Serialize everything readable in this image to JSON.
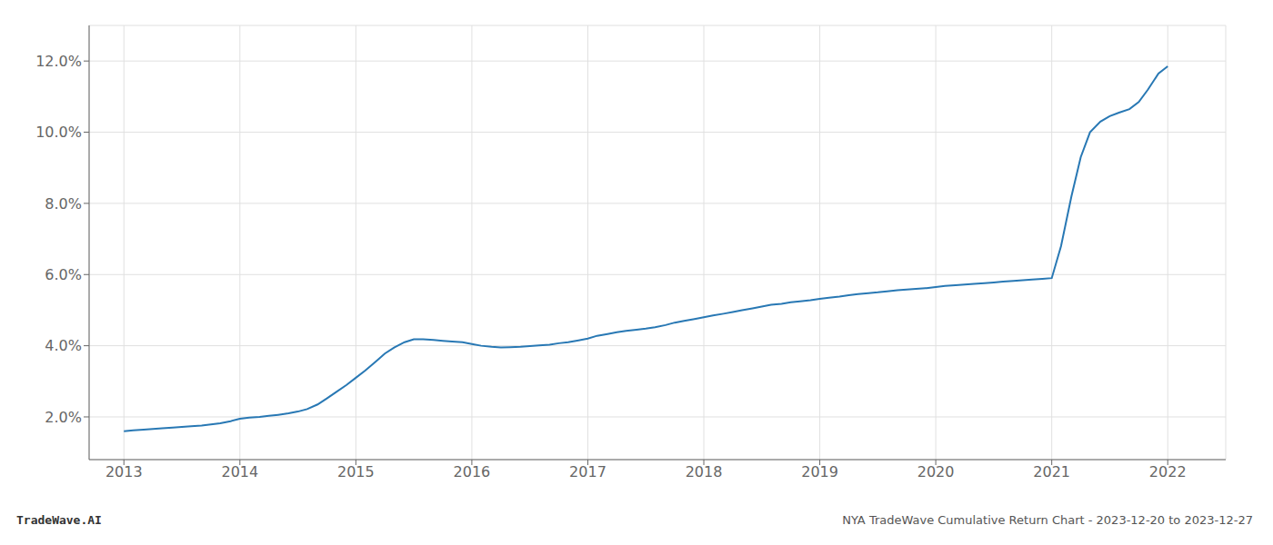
{
  "chart_data": {
    "type": "line",
    "color": "#2878b4",
    "grid": true,
    "annotations": [
      "TradeWave.AI",
      "NYA TradeWave Cumulative Return Chart - 2023-12-20 to 2023-12-27"
    ],
    "x": [
      2013,
      2013.08,
      2013.17,
      2013.25,
      2013.33,
      2013.42,
      2013.5,
      2013.58,
      2013.67,
      2013.75,
      2013.83,
      2013.92,
      2014.0,
      2014.08,
      2014.17,
      2014.25,
      2014.33,
      2014.42,
      2014.5,
      2014.58,
      2014.67,
      2014.75,
      2014.83,
      2014.92,
      2015.0,
      2015.08,
      2015.17,
      2015.25,
      2015.33,
      2015.42,
      2015.5,
      2015.58,
      2015.67,
      2015.75,
      2015.83,
      2015.92,
      2016.0,
      2016.08,
      2016.17,
      2016.25,
      2016.33,
      2016.42,
      2016.5,
      2016.58,
      2016.67,
      2016.75,
      2016.83,
      2016.92,
      2017.0,
      2017.08,
      2017.17,
      2017.25,
      2017.33,
      2017.42,
      2017.5,
      2017.58,
      2017.67,
      2017.75,
      2017.83,
      2017.92,
      2018.0,
      2018.08,
      2018.17,
      2018.25,
      2018.33,
      2018.42,
      2018.5,
      2018.58,
      2018.67,
      2018.75,
      2018.83,
      2018.92,
      2019.0,
      2019.08,
      2019.17,
      2019.25,
      2019.33,
      2019.42,
      2019.5,
      2019.58,
      2019.67,
      2019.75,
      2019.83,
      2019.92,
      2020.0,
      2020.08,
      2020.17,
      2020.25,
      2020.33,
      2020.42,
      2020.5,
      2020.58,
      2020.67,
      2020.75,
      2020.83,
      2020.92,
      2021.0,
      2021.08,
      2021.17,
      2021.25,
      2021.33,
      2021.42,
      2021.5,
      2021.58,
      2021.67,
      2021.75,
      2021.83,
      2021.92,
      2022.0
    ],
    "values": [
      1.6,
      1.62,
      1.64,
      1.66,
      1.68,
      1.7,
      1.72,
      1.74,
      1.76,
      1.79,
      1.82,
      1.88,
      1.95,
      1.98,
      2.0,
      2.03,
      2.06,
      2.1,
      2.15,
      2.22,
      2.35,
      2.52,
      2.7,
      2.9,
      3.1,
      3.3,
      3.55,
      3.78,
      3.95,
      4.1,
      4.18,
      4.18,
      4.16,
      4.14,
      4.12,
      4.1,
      4.05,
      4.0,
      3.97,
      3.95,
      3.96,
      3.97,
      3.99,
      4.01,
      4.03,
      4.07,
      4.1,
      4.15,
      4.2,
      4.28,
      4.33,
      4.38,
      4.42,
      4.45,
      4.48,
      4.52,
      4.58,
      4.65,
      4.7,
      4.75,
      4.8,
      4.85,
      4.9,
      4.95,
      5.0,
      5.05,
      5.1,
      5.15,
      5.18,
      5.22,
      5.25,
      5.28,
      5.32,
      5.35,
      5.38,
      5.42,
      5.45,
      5.48,
      5.5,
      5.53,
      5.56,
      5.58,
      5.6,
      5.62,
      5.65,
      5.68,
      5.7,
      5.72,
      5.74,
      5.76,
      5.78,
      5.8,
      5.82,
      5.84,
      5.86,
      5.88,
      5.9,
      6.8,
      8.2,
      9.3,
      10.0,
      10.3,
      10.45,
      10.55,
      10.65,
      10.85,
      11.2,
      11.65,
      11.85
    ],
    "xlim": [
      2012.7,
      2022.5
    ],
    "xticks": [
      2013,
      2014,
      2015,
      2016,
      2017,
      2018,
      2019,
      2020,
      2021,
      2022
    ],
    "ylim": [
      0.8,
      13.0
    ],
    "yticks": [
      {
        "value": 2.0,
        "label": "2.0%"
      },
      {
        "value": 4.0,
        "label": "4.0%"
      },
      {
        "value": 6.0,
        "label": "6.0%"
      },
      {
        "value": 8.0,
        "label": "8.0%"
      },
      {
        "value": 10.0,
        "label": "10.0%"
      },
      {
        "value": 12.0,
        "label": "12.0%"
      }
    ]
  }
}
